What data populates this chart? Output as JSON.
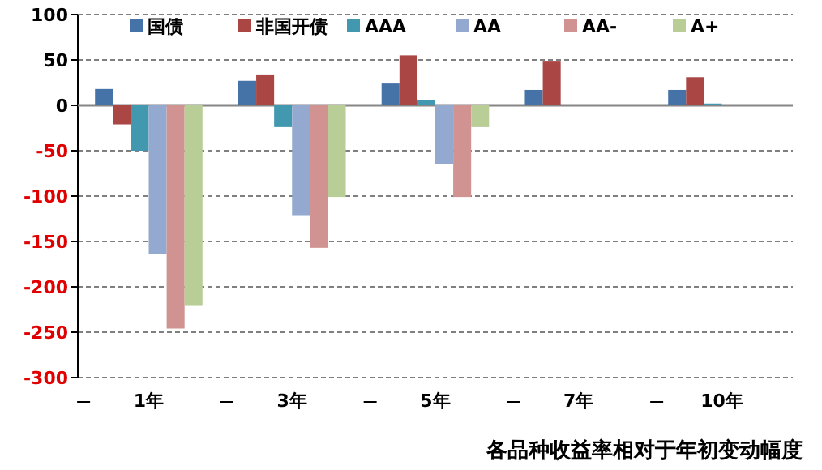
{
  "chart_data": {
    "type": "bar",
    "xlabel": "各品种收益率相对于年初变动幅度",
    "categories": [
      "1年",
      "3年",
      "5年",
      "7年",
      "10年"
    ],
    "series": [
      {
        "name": "国债",
        "color": "#4572a7",
        "values": [
          18,
          27,
          24,
          17,
          17
        ]
      },
      {
        "name": "非国开债",
        "color": "#aa4643",
        "values": [
          -21,
          34,
          55,
          49,
          31
        ]
      },
      {
        "name": "AAA",
        "color": "#4198af",
        "values": [
          -50,
          -24,
          6,
          null,
          2
        ]
      },
      {
        "name": "AA",
        "color": "#93a9cf",
        "values": [
          -164,
          -121,
          -65,
          null,
          null
        ]
      },
      {
        "name": "AA-",
        "color": "#d19392",
        "values": [
          -246,
          -157,
          -101,
          null,
          null
        ]
      },
      {
        "name": "A+",
        "color": "#b9cd96",
        "values": [
          -221,
          -101,
          -24,
          null,
          null
        ]
      }
    ],
    "ylim": [
      -300,
      100
    ],
    "yticks": [
      -300,
      -250,
      -200,
      -150,
      -100,
      -50,
      0,
      50,
      100
    ],
    "grid": "y",
    "legend": "top"
  }
}
